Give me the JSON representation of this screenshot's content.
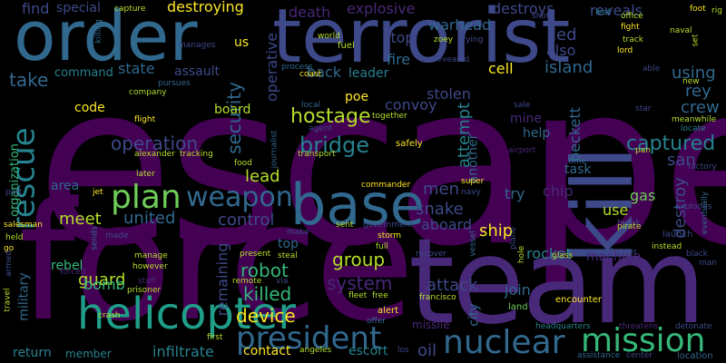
{
  "words": {
    "escape": "escape",
    "force": "force",
    "team": "team",
    "terrorist": "terrorist",
    "order": "order",
    "kill": "kill",
    "base": "base",
    "helicopter": "helicopter",
    "nuclear": "nuclear",
    "president": "president",
    "mission": "mission",
    "weapon": "weapon",
    "plan": "plan",
    "rescue": "rescue",
    "captured": "captured",
    "hostage": "hostage",
    "bridge": "bridge",
    "operation": "operation",
    "security": "security",
    "system": "system",
    "device": "device",
    "robot": "robot",
    "killed": "killed",
    "control": "control",
    "united": "united",
    "meet": "meet",
    "lead": "lead",
    "group": "group",
    "attack": "attack",
    "ship": "ship",
    "snake": "snake",
    "aboard": "aboard",
    "men": "men",
    "try": "try",
    "chip": "chip",
    "destroy": "destroy",
    "crew": "crew",
    "rey": "rey",
    "san": "san",
    "beckett": "beckett",
    "attempt": "attempt",
    "stolen": "stolen",
    "cell": "cell",
    "island": "island",
    "using": "using",
    "state": "state",
    "assault": "assault",
    "command": "command",
    "take": "take",
    "leader": "leader",
    "back": "back",
    "fire": "fire",
    "stop": "stop",
    "led": "led",
    "also": "also",
    "reveals": "reveals",
    "destroys": "destroys",
    "warhead": "warhead",
    "explosive": "explosive",
    "death": "death",
    "destroying": "destroying",
    "special": "special",
    "find": "find",
    "code": "code",
    "board": "board",
    "convoy": "convoy",
    "poe": "poe",
    "help": "help",
    "mine": "mine",
    "task": "task",
    "area": "area",
    "gas": "gas",
    "use": "use",
    "rocket": "rocket",
    "join": "join",
    "machine": "machine",
    "guard": "guard",
    "bomb": "bomb",
    "rebel": "rebel",
    "military": "military",
    "return": "return",
    "member": "member",
    "infiltrate": "infiltrate",
    "contact": "contact",
    "escort": "escort",
    "oil": "oil",
    "city": "city",
    "missile": "missile",
    "remaining": "remaining",
    "top": "top",
    "organization": "organization",
    "us": "us",
    "fuel": "fuel",
    "operative": "operative",
    "another": "another",
    "safely": "safely",
    "alert": "alert",
    "land": "land",
    "encounter": "encounter",
    "launch": "launch",
    "threatens": "threatens",
    "detonate": "detonate",
    "location": "location",
    "headquarters": "headquarters",
    "center": "center",
    "assistance": "assistance",
    "black": "black",
    "man": "man",
    "instead": "instead",
    "former": "former",
    "break": "break",
    "pirate": "pirate",
    "explodes": "explodes",
    "eventually": "eventually",
    "meanwhile": "meanwhile",
    "locate": "locate",
    "star": "star",
    "new": "new",
    "able": "able",
    "naval": "naval",
    "lord": "lord",
    "track": "track",
    "fight": "fight",
    "office": "office",
    "leaf": "leaf",
    "shot": "shot",
    "foot": "foot",
    "rig": "rig",
    "zoey": "zoey",
    "revealed": "revealed",
    "trying": "trying",
    "world": "world",
    "coast": "coast",
    "process": "process",
    "agent": "agent",
    "local": "local",
    "together": "together",
    "sale": "sale",
    "airport": "airport",
    "time": "time",
    "pan": "pan",
    "factory": "factory",
    "capture": "capture",
    "killing": "killing",
    "manages": "manages",
    "company": "company",
    "pursues": "pursues",
    "flight": "flight",
    "alexander": "alexander",
    "tracking": "tracking",
    "journalist": "journalist",
    "food": "food",
    "transport": "transport",
    "later": "later",
    "commander": "commander",
    "jet": "jet",
    "port": "port",
    "navy": "navy",
    "super": "super",
    "salesman": "salesman",
    "held": "held",
    "go": "go",
    "made": "made",
    "sends": "sends",
    "make": "make",
    "sent": "sent",
    "government": "government",
    "storm": "storm",
    "full": "full",
    "vessel": "vessel",
    "plane": "plane",
    "glass": "glass",
    "hole": "hole",
    "recover": "recover",
    "present": "present",
    "steal": "steal",
    "via": "via",
    "remote": "remote",
    "fleet": "fleet",
    "free": "free",
    "francisco": "francisco",
    "manage": "manage",
    "however": "however",
    "staff": "staff",
    "prisoner": "prisoner",
    "forced": "forced",
    "armed": "armed",
    "travel": "travel",
    "crash": "crash",
    "first": "first",
    "angeles": "angeles",
    "los": "los",
    "offer": "offer",
    "set": "set"
  },
  "colors": {
    "background": "#000000",
    "dark_purple": "#440154",
    "purple": "#482878",
    "indigo": "#3e4989",
    "blue": "#31688e",
    "teal": "#26828e",
    "green_teal": "#1f9e89",
    "green": "#35b779",
    "lime": "#6ece58",
    "yellow_green": "#b5de2b",
    "yellow": "#fde725"
  }
}
